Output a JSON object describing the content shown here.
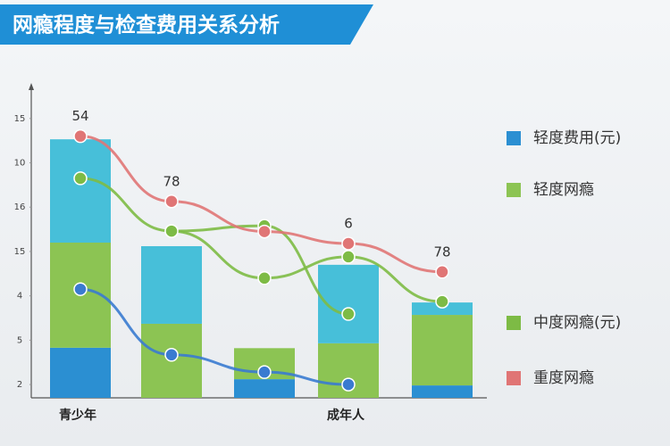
{
  "chart_data": {
    "type": "bar",
    "title": "网瘾程度与检查费用关系分析",
    "categories": [
      "青少年",
      null,
      null,
      "成年人",
      null
    ],
    "ylim": [
      0.7,
      7.7
    ],
    "yticks": [
      {
        "value": 1,
        "label": "2"
      },
      {
        "value": 2,
        "label": "5"
      },
      {
        "value": 3,
        "label": "4"
      },
      {
        "value": 4,
        "label": "15"
      },
      {
        "value": 5,
        "label": "16"
      },
      {
        "value": 6,
        "label": "10"
      },
      {
        "value": 7,
        "label": "15"
      }
    ],
    "grid": false,
    "legend": "right",
    "annotations": [
      "54",
      "78",
      null,
      "6",
      "78"
    ],
    "series": [
      {
        "name": "轻度费用(元)",
        "type": "bar",
        "color": "#2b8fd2",
        "values": [
          1.13,
          null,
          0.42,
          null,
          0.28
        ]
      },
      {
        "name": "轻度网瘾",
        "type": "bar",
        "color": "#8cc453",
        "values": [
          2.37,
          1.67,
          0.7,
          1.23,
          1.59
        ]
      },
      {
        "type": "bar",
        "color": "#47bfd9",
        "values": [
          2.33,
          1.75,
          null,
          1.77,
          0.28
        ]
      },
      {
        "name": "中度网瘾(元)",
        "type": "line",
        "color": "#7dbb45",
        "values": [
          5.65,
          4.46,
          4.58,
          2.59,
          null
        ]
      },
      {
        "name": "重度网瘾",
        "type": "line",
        "color": "#e07575",
        "values": [
          6.6,
          5.13,
          4.45,
          4.18,
          3.54
        ]
      },
      {
        "type": "line",
        "color": "#3a7bd0",
        "values": [
          3.15,
          1.67,
          1.28,
          1.0,
          null
        ]
      },
      {
        "type": "line",
        "color": "#7dbb45",
        "values": [
          null,
          4.46,
          3.4,
          3.88,
          2.87
        ]
      }
    ]
  }
}
